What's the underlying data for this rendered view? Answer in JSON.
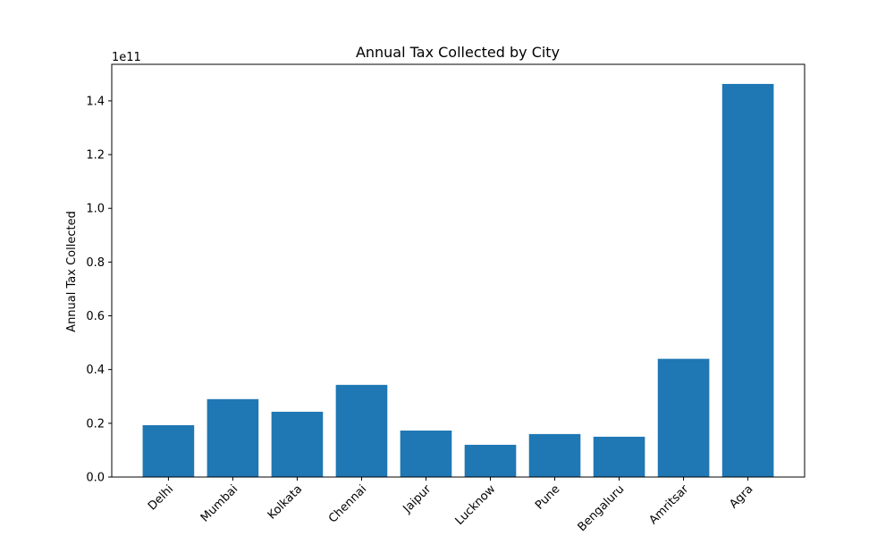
{
  "chart_data": {
    "type": "bar",
    "title": "Annual Tax Collected by City",
    "xlabel": "",
    "ylabel": "Annual Tax Collected",
    "y_offset_text": "1e11",
    "y_scale": 100000000000,
    "ylim": [
      0,
      153600000000.0
    ],
    "yticks": [
      0,
      0.2,
      0.4,
      0.6,
      0.8,
      1.0,
      1.2,
      1.4
    ],
    "ytick_labels": [
      "0.0",
      "0.2",
      "0.4",
      "0.6",
      "0.8",
      "1.0",
      "1.2",
      "1.4"
    ],
    "categories": [
      "Delhi",
      "Mumbai",
      "Kolkata",
      "Chennai",
      "Jaipur",
      "Lucknow",
      "Pune",
      "Bengaluru",
      "Amritsar",
      "Agra"
    ],
    "values": [
      19300000000,
      29000000000,
      24300000000,
      34300000000,
      17300000000,
      12000000000,
      16000000000,
      15000000000,
      44000000000,
      146300000000
    ],
    "bar_color": "#1f77b4",
    "grid": false
  }
}
